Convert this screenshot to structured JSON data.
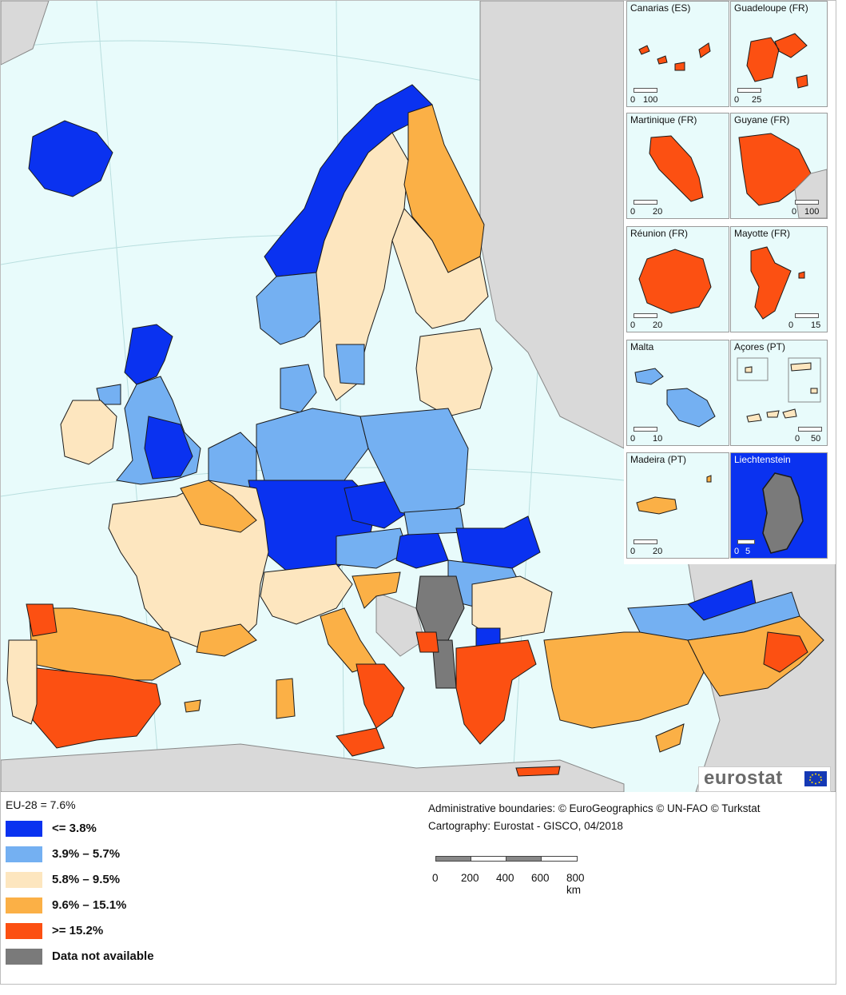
{
  "legend": {
    "eu_average": "EU-28 = 7.6%",
    "classes": [
      {
        "label": "<= 3.8%",
        "color": "#0a32f0"
      },
      {
        "label": "3.9% – 5.7%",
        "color": "#74b0f2"
      },
      {
        "label": "5.8% – 9.5%",
        "color": "#fde6bf"
      },
      {
        "label": "9.6% – 15.1%",
        "color": "#fbb046"
      },
      {
        "label": ">= 15.2%",
        "color": "#fc5012"
      },
      {
        "label": "Data not available",
        "color": "#7a7a7a"
      }
    ]
  },
  "credits": {
    "boundaries": "Administrative boundaries: © EuroGeographics © UN-FAO © Turkstat",
    "cartography": "Cartography: Eurostat - GISCO, 04/2018"
  },
  "scale": {
    "ticks": [
      "0",
      "200",
      "400",
      "600",
      "800 km"
    ]
  },
  "logo": {
    "text": "eurostat"
  },
  "insets": [
    {
      "title": "Canarias (ES)",
      "scale": [
        "0",
        "100"
      ],
      "color": "#fc5012"
    },
    {
      "title": "Guadeloupe (FR)",
      "scale": [
        "0",
        "25"
      ],
      "color": "#fc5012"
    },
    {
      "title": "Martinique (FR)",
      "scale": [
        "0",
        "20"
      ],
      "color": "#fc5012"
    },
    {
      "title": "Guyane (FR)",
      "scale": [
        "0",
        "100"
      ],
      "color": "#fc5012"
    },
    {
      "title": "Réunion (FR)",
      "scale": [
        "0",
        "20"
      ],
      "color": "#fc5012"
    },
    {
      "title": "Mayotte (FR)",
      "scale": [
        "0",
        "15"
      ],
      "color": "#fc5012"
    },
    {
      "title": "Malta",
      "scale": [
        "0",
        "10"
      ],
      "color": "#74b0f2"
    },
    {
      "title": "Açores (PT)",
      "scale": [
        "0",
        "50"
      ],
      "color": "#fde6bf"
    },
    {
      "title": "Madeira (PT)",
      "scale": [
        "0",
        "20"
      ],
      "color": "#fbb046"
    },
    {
      "title": "Liechtenstein",
      "scale": [
        "0",
        "5"
      ],
      "color": "#7a7a7a"
    }
  ],
  "colors": {
    "sea": "#e8fbfb",
    "non_eu_land": "#d9d9d9",
    "border": "#1a1a1a"
  }
}
